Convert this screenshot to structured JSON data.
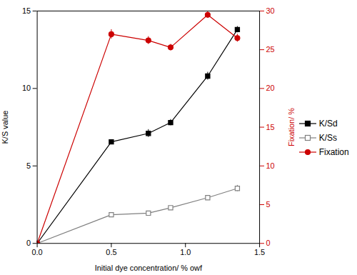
{
  "chart_data": {
    "type": "line",
    "xlabel": "Initial dye concentration/ % owf",
    "ylabel": "K/S value",
    "y2label": "Fixation/ %",
    "x": [
      0.0,
      0.5,
      0.75,
      0.9,
      1.15,
      1.35
    ],
    "series": [
      {
        "name": "K/Sd",
        "color": "#000000",
        "marker": "square",
        "values": [
          0.0,
          6.55,
          7.1,
          7.8,
          10.8,
          13.8
        ],
        "errors": [
          0.0,
          0.15,
          0.25,
          0.2,
          0.25,
          0.2
        ]
      },
      {
        "name": "K/Ss",
        "color": "#808080",
        "marker": "open_square",
        "values": [
          0.0,
          1.85,
          1.95,
          2.3,
          2.95,
          3.55
        ],
        "errors": [
          0.0,
          0.1,
          0.1,
          0.1,
          0.15,
          0.2
        ]
      },
      {
        "name": "Fixation",
        "color": "#cc0000",
        "marker": "circle",
        "axis": "y2",
        "values": [
          0.0,
          27.0,
          26.2,
          25.3,
          29.5,
          26.5
        ],
        "errors": [
          0.0,
          0.6,
          0.5,
          0.4,
          0.4,
          0.5
        ]
      }
    ],
    "xlim": [
      0.0,
      1.5
    ],
    "xticks": [
      {
        "value": 0.0,
        "label": "0.0"
      },
      {
        "value": 0.5,
        "label": "0.5"
      },
      {
        "value": 1.0,
        "label": "1.0"
      },
      {
        "value": 1.5,
        "label": "1.5"
      }
    ],
    "ylim": [
      0,
      15
    ],
    "yticks": [
      0,
      5,
      10,
      15
    ],
    "y2lim": [
      0,
      30
    ],
    "y2ticks": [
      0,
      5,
      10,
      15,
      20,
      25,
      30
    ],
    "legend": "right",
    "grid": false
  }
}
